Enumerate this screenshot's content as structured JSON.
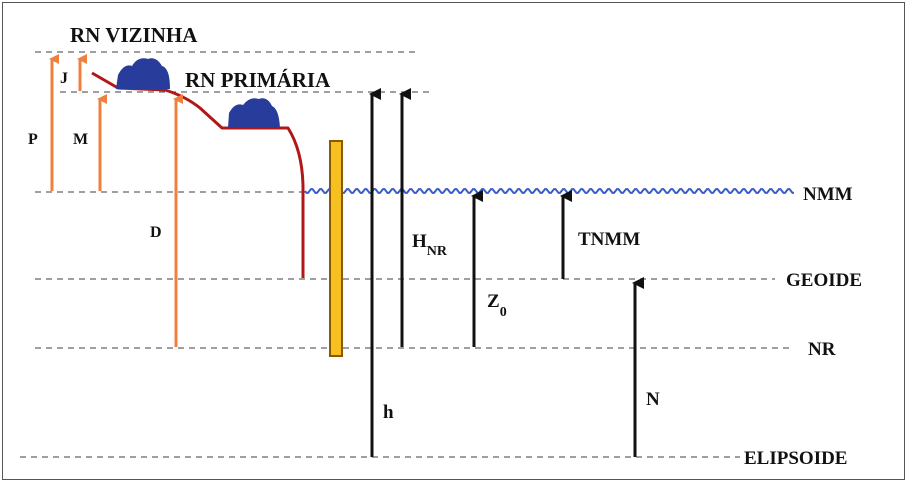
{
  "diagram": {
    "labels": {
      "rn_vizinha": "RN VIZINHA",
      "rn_primaria": "RN PRIMÁRIA",
      "nmm": "NMM",
      "geoide": "GEOIDE",
      "nr": "NR",
      "elipsoide": "ELIPSOIDE",
      "p": "P",
      "j": "J",
      "m": "M",
      "d": "D",
      "h_nr_main": "H",
      "h_nr_sub": "NR",
      "z0_main": "Z",
      "z0_sub": "0",
      "tnmm": "TNMM",
      "n": "N",
      "h": "h"
    },
    "colors": {
      "orange_arrow": "#f08040",
      "black_arrow": "#111111",
      "coast": "#b01818",
      "monument": "#283c9c",
      "water": "#3a5cc8",
      "tide_gauge_fill": "#f5c020",
      "tide_gauge_stroke": "#8a5a00",
      "dashed_line": "#666666"
    }
  }
}
